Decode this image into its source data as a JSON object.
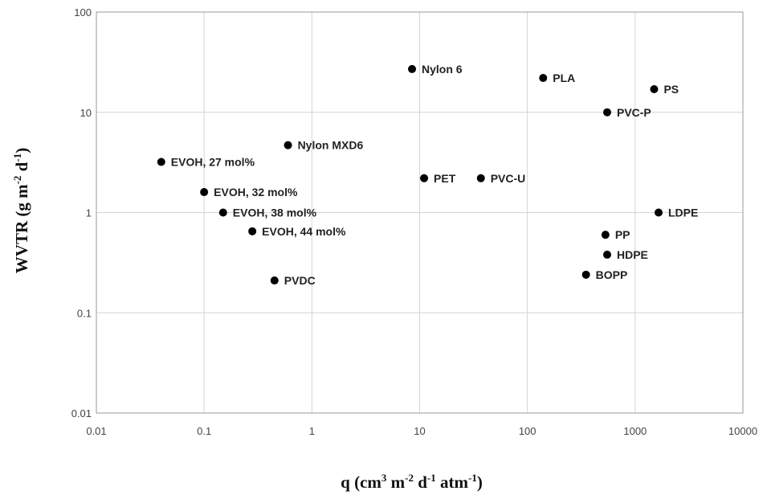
{
  "chart_data": {
    "type": "scatter",
    "xlabel": {
      "main": "q (cm",
      "parts": [
        [
          "3",
          " m"
        ],
        [
          "-2",
          " d"
        ],
        [
          "-1",
          " atm"
        ],
        [
          "-1",
          ")"
        ]
      ]
    },
    "ylabel": {
      "main": "WVTR (g m",
      "parts": [
        [
          "-2",
          " d"
        ],
        [
          "-1",
          ")"
        ]
      ]
    },
    "x_scale": "log",
    "y_scale": "log",
    "xlim": [
      0.01,
      10000
    ],
    "ylim": [
      0.01,
      100
    ],
    "x_ticks": [
      "0.01",
      "0.1",
      "1",
      "10",
      "100",
      "1000",
      "10000"
    ],
    "y_ticks": [
      "0.01",
      "0.1",
      "1",
      "10",
      "100"
    ],
    "grid": true,
    "legend": "none",
    "marker_color": "#000000",
    "points": [
      {
        "label": "EVOH, 27 mol%",
        "x": 0.04,
        "y": 3.2
      },
      {
        "label": "EVOH, 32 mol%",
        "x": 0.1,
        "y": 1.6
      },
      {
        "label": "EVOH, 38 mol%",
        "x": 0.15,
        "y": 1.0
      },
      {
        "label": "EVOH, 44 mol%",
        "x": 0.28,
        "y": 0.65
      },
      {
        "label": "PVDC",
        "x": 0.45,
        "y": 0.21
      },
      {
        "label": "Nylon MXD6",
        "x": 0.6,
        "y": 4.7
      },
      {
        "label": "Nylon 6",
        "x": 8.5,
        "y": 27
      },
      {
        "label": "PET",
        "x": 11,
        "y": 2.2
      },
      {
        "label": "PVC-U",
        "x": 37,
        "y": 2.2
      },
      {
        "label": "PLA",
        "x": 140,
        "y": 22
      },
      {
        "label": "PS",
        "x": 1500,
        "y": 17
      },
      {
        "label": "PVC-P",
        "x": 550,
        "y": 10
      },
      {
        "label": "LDPE",
        "x": 1650,
        "y": 1.0
      },
      {
        "label": "PP",
        "x": 530,
        "y": 0.6
      },
      {
        "label": "HDPE",
        "x": 550,
        "y": 0.38
      },
      {
        "label": "BOPP",
        "x": 350,
        "y": 0.24
      }
    ]
  }
}
